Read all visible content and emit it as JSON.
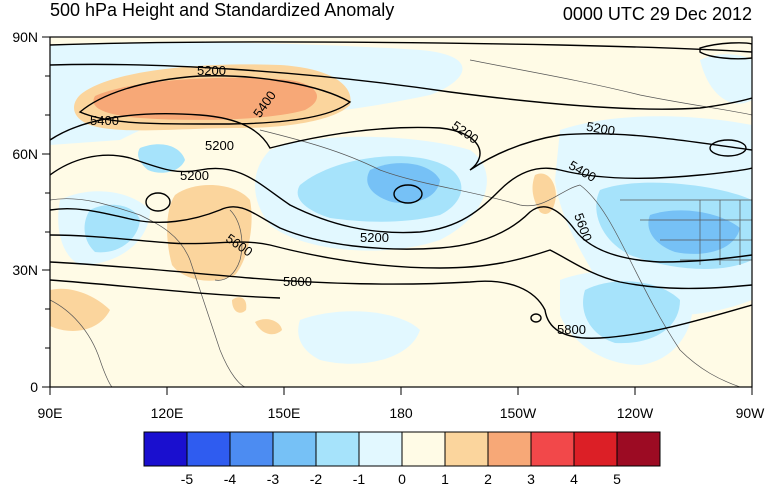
{
  "title": "500 hPa Height and Standardized Anomaly",
  "valid_time": "0000 UTC 29 Dec 2012",
  "lat_axis": [
    "90N",
    "60N",
    "30N",
    "0"
  ],
  "lon_axis": [
    "90E",
    "120E",
    "150E",
    "180",
    "150W",
    "120W",
    "90W"
  ],
  "contour_levels": [
    "5200",
    "5400",
    "5200",
    "5200",
    "5200",
    "5400",
    "5600",
    "5200",
    "5200",
    "5400",
    "5600",
    "5800",
    "5800"
  ],
  "colorbar": {
    "labels": [
      "-5",
      "-4",
      "-3",
      "-2",
      "-1",
      "0",
      "1",
      "2",
      "3",
      "4",
      "5"
    ],
    "colors": [
      "#1a0fcf",
      "#2f5cf0",
      "#4c8cf2",
      "#76c1f6",
      "#a6e3fb",
      "#e2f8ff",
      "#fffbe6",
      "#fbd59d",
      "#f7a877",
      "#f2484a",
      "#dc1f26",
      "#9c0b23"
    ]
  },
  "colors": {
    "ocean_bg": "#fffbe6",
    "neg1": "#e2f8ff",
    "neg2": "#a6e3fb",
    "neg3": "#76c1f6",
    "pos1": "#fbd59d",
    "pos2": "#f7a877"
  }
}
